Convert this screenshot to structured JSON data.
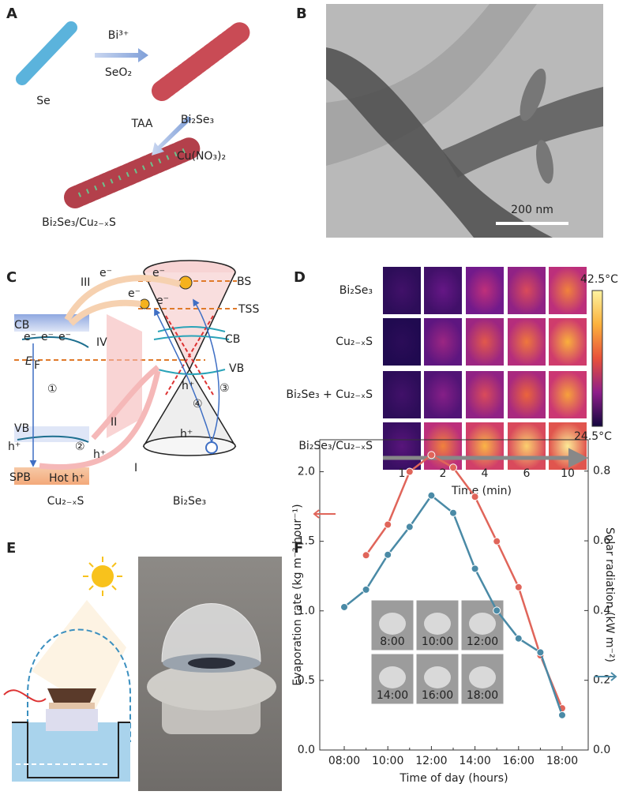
{
  "panel_labels": [
    "A",
    "B",
    "C",
    "D",
    "E",
    "F"
  ],
  "panel_a": {
    "precursor": "Se",
    "reagent_1": "Bi³⁺",
    "reagent_2": "SeO₂",
    "intermediate": "Bi₂Se₃",
    "reagent_3": "TAA",
    "reagent_4": "Cu(NO₃)₂",
    "product": "Bi₂Se₃/Cu₂₋ₓS"
  },
  "panel_b": {
    "scale_bar": "200 nm"
  },
  "panel_c": {
    "labels": [
      "III",
      "e⁻",
      "e⁻",
      "e⁻",
      "e⁻",
      "BS",
      "TSS",
      "IV",
      "CB",
      "e⁻",
      "e⁻",
      "e⁻",
      "CB",
      "E",
      "F",
      "VB",
      "h⁺",
      "①",
      "③",
      "④",
      "II",
      "VB",
      "h⁺",
      "②",
      "h⁺",
      "h⁺",
      "SPB",
      "Hot h⁺",
      "I",
      "Cu₂₋ₓS",
      "Bi₂Se₃"
    ]
  },
  "panel_d": {
    "rows": [
      "Bi₂Se₃",
      "Cu₂₋ₓS",
      "Bi₂Se₃ + Cu₂₋ₓS",
      "Bi₂Se₃/Cu₂₋ₓS"
    ],
    "columns": [
      1,
      2,
      4,
      6,
      10
    ],
    "axis_label": "Time (min)",
    "colorbar_max": "42.5°C",
    "colorbar_min": "24.5°C"
  },
  "chart_data": {
    "type": "line",
    "x_label": "Time of day (hours)",
    "y_label": "Evaporation rate (kg m⁻² hour⁻¹)",
    "y2_label": "Solar radiation (kW m⁻²)",
    "categories": [
      "08:00",
      null,
      "10:00",
      null,
      "12:00",
      null,
      "14:00",
      null,
      "16:00",
      null,
      "18:00"
    ],
    "series": [
      {
        "color": "#e0655a",
        "values": [
          null,
          1.4,
          1.62,
          2.0,
          2.12,
          2.03,
          1.82,
          1.5,
          1.17,
          0.68,
          0.3
        ]
      },
      {
        "color": "#4a8aa6",
        "axis": "y2",
        "values": [
          0.41,
          0.46,
          0.56,
          0.64,
          0.73,
          0.68,
          0.52,
          0.4,
          0.32,
          0.28,
          0.1
        ]
      }
    ],
    "ylim": [
      0,
      2.23
    ],
    "yticks": [
      {
        "value": 0,
        "label": "0.0"
      },
      0.5,
      {
        "value": 1,
        "label": "1.0"
      },
      1.5,
      {
        "value": 2,
        "label": "2.0"
      }
    ],
    "y2lim": [
      0,
      0.89
    ],
    "y2ticks": [
      {
        "value": 0,
        "label": "0.0"
      },
      0.2,
      0.4,
      0.6,
      0.8
    ],
    "inset_labels": [
      "8:00",
      "10:00",
      "12:00",
      "14:00",
      "16:00",
      "18:00"
    ]
  }
}
